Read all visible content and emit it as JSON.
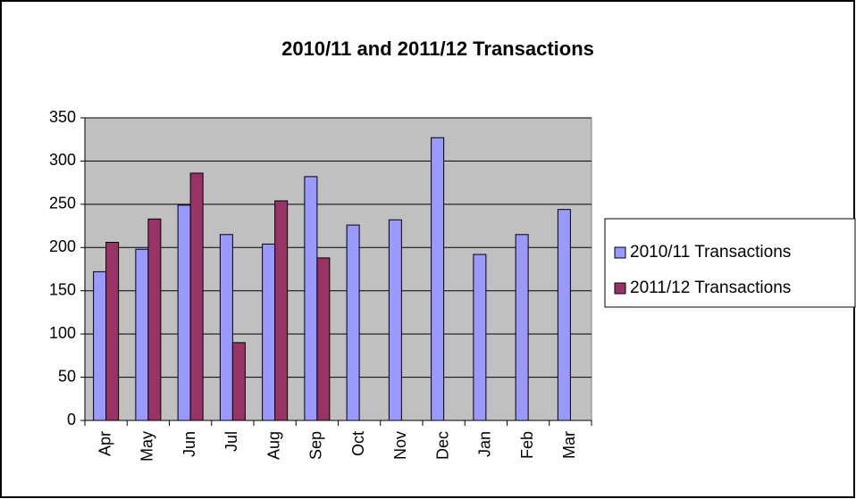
{
  "chart_data": {
    "type": "bar",
    "title": "2010/11 and 2011/12 Transactions",
    "categories": [
      "Apr",
      "May",
      "Jun",
      "Jul",
      "Aug",
      "Sep",
      "Oct",
      "Nov",
      "Dec",
      "Jan",
      "Feb",
      "Mar"
    ],
    "series": [
      {
        "name": "2010/11 Transactions",
        "color": "#9999ff",
        "values": [
          172,
          198,
          249,
          215,
          204,
          282,
          226,
          232,
          327,
          192,
          215,
          244
        ]
      },
      {
        "name": "2011/12 Transactions",
        "color": "#993366",
        "values": [
          206,
          233,
          286,
          90,
          254,
          188,
          null,
          null,
          null,
          null,
          null,
          null
        ]
      }
    ],
    "ylim": [
      0,
      350
    ],
    "yticks": [
      0,
      50,
      100,
      150,
      200,
      250,
      300,
      350
    ],
    "grid": true,
    "legend": "right"
  }
}
